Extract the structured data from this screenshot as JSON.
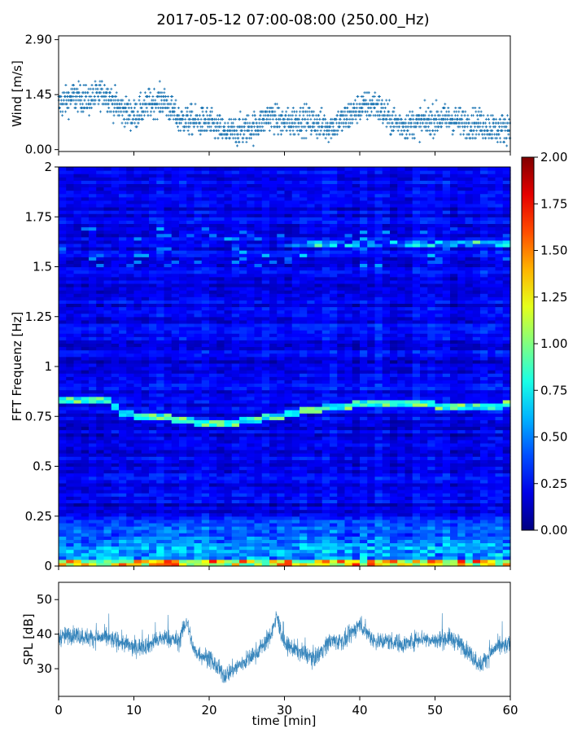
{
  "figure": {
    "title": "2017-05-12 07:00-08:00 (250.00_Hz)"
  },
  "colors": {
    "series": "#1f77b4",
    "axes": "#000000",
    "colormap": "jet"
  },
  "chart_data": [
    {
      "id": "wind",
      "type": "scatter",
      "title": "",
      "xlabel": "",
      "ylabel": "Wind [m/s]",
      "xlim": [
        0,
        60
      ],
      "ylim": [
        -0.05,
        3.0
      ],
      "xticks": [
        0,
        10,
        20,
        30,
        40,
        50,
        60
      ],
      "yticks": [
        0.0,
        1.45,
        2.9
      ],
      "ytick_labels": [
        "0.00",
        "1.45",
        "2.90"
      ],
      "x_tick_labels_visible": false,
      "grid": false,
      "marker": "+",
      "resolution": 0.1,
      "trend": {
        "x": [
          0,
          2,
          4,
          6,
          8,
          10,
          12,
          14,
          16,
          18,
          20,
          22,
          24,
          26,
          28,
          30,
          32,
          34,
          36,
          38,
          40,
          42,
          44,
          46,
          48,
          50,
          52,
          54,
          56,
          58,
          60
        ],
        "y": [
          1.2,
          1.4,
          1.3,
          1.5,
          1.1,
          0.9,
          1.2,
          1.3,
          0.8,
          0.75,
          0.7,
          0.45,
          0.5,
          0.6,
          0.9,
          0.7,
          0.8,
          0.7,
          0.6,
          0.8,
          1.1,
          1.2,
          0.8,
          0.65,
          0.7,
          0.8,
          0.8,
          0.7,
          0.7,
          0.55,
          0.6
        ]
      }
    },
    {
      "id": "spectrogram",
      "type": "heatmap",
      "title": "",
      "xlabel": "",
      "ylabel": "FFT Frequenz [Hz]",
      "xlim": [
        0,
        60
      ],
      "ylim": [
        0,
        2
      ],
      "yticks": [
        0,
        0.25,
        0.5,
        0.75,
        1,
        1.25,
        1.5,
        1.75,
        2
      ],
      "ytick_labels": [
        "0",
        "0.25",
        "0.5",
        "0.75",
        "1",
        "1.25",
        "1.5",
        "1.75",
        "2"
      ],
      "x_tick_labels_visible": false,
      "colorbar": {
        "range": [
          0,
          2
        ],
        "ticks": [
          0,
          0.25,
          0.5,
          0.75,
          1,
          1.25,
          1.5,
          1.75,
          2
        ],
        "tick_labels": [
          "0.00",
          "0.25",
          "0.50",
          "0.75",
          "1.00",
          "1.25",
          "1.50",
          "1.75",
          "2.00"
        ],
        "colormap": "jet"
      },
      "features": {
        "base_level": 0.22,
        "low_freq_band": {
          "freq_max": 0.3,
          "level": 0.75
        },
        "strong_band": {
          "freq_max": 0.03,
          "level": 1.5
        },
        "tonal_line": {
          "x": [
            0,
            7,
            8,
            10,
            13,
            17,
            20,
            23,
            27,
            30,
            33,
            36,
            40,
            44,
            48,
            52,
            56,
            60
          ],
          "freq": [
            0.83,
            0.83,
            0.76,
            0.76,
            0.75,
            0.73,
            0.72,
            0.72,
            0.74,
            0.76,
            0.78,
            0.8,
            0.81,
            0.81,
            0.82,
            0.8,
            0.8,
            0.81
          ],
          "level": 1.0
        },
        "upper_band": {
          "freq": 1.62,
          "x_from": 30,
          "x_to": 60,
          "level": 0.5
        }
      }
    },
    {
      "id": "spl",
      "type": "line",
      "title": "",
      "xlabel": "time [min]",
      "ylabel": "SPL [dB]",
      "xlim": [
        0,
        60
      ],
      "ylim": [
        22,
        55
      ],
      "xticks": [
        0,
        10,
        20,
        30,
        40,
        50,
        60
      ],
      "xtick_labels": [
        "0",
        "10",
        "20",
        "30",
        "40",
        "50",
        "60"
      ],
      "yticks": [
        30,
        40,
        50
      ],
      "ytick_labels": [
        "30",
        "40",
        "50"
      ],
      "grid": false,
      "trend": {
        "x": [
          0,
          2,
          4,
          6,
          8,
          10,
          12,
          14,
          16,
          17,
          18,
          20,
          22,
          24,
          26,
          28,
          29,
          30,
          32,
          34,
          36,
          38,
          40,
          42,
          44,
          46,
          48,
          50,
          52,
          54,
          56,
          58,
          60
        ],
        "y": [
          39,
          40,
          39,
          39,
          38,
          36,
          37,
          39,
          38,
          44,
          35,
          33,
          28,
          31,
          34,
          39,
          45,
          37,
          35,
          33,
          38,
          38,
          43,
          38,
          38,
          37,
          39,
          38,
          39,
          36,
          31,
          36,
          37
        ]
      }
    }
  ]
}
